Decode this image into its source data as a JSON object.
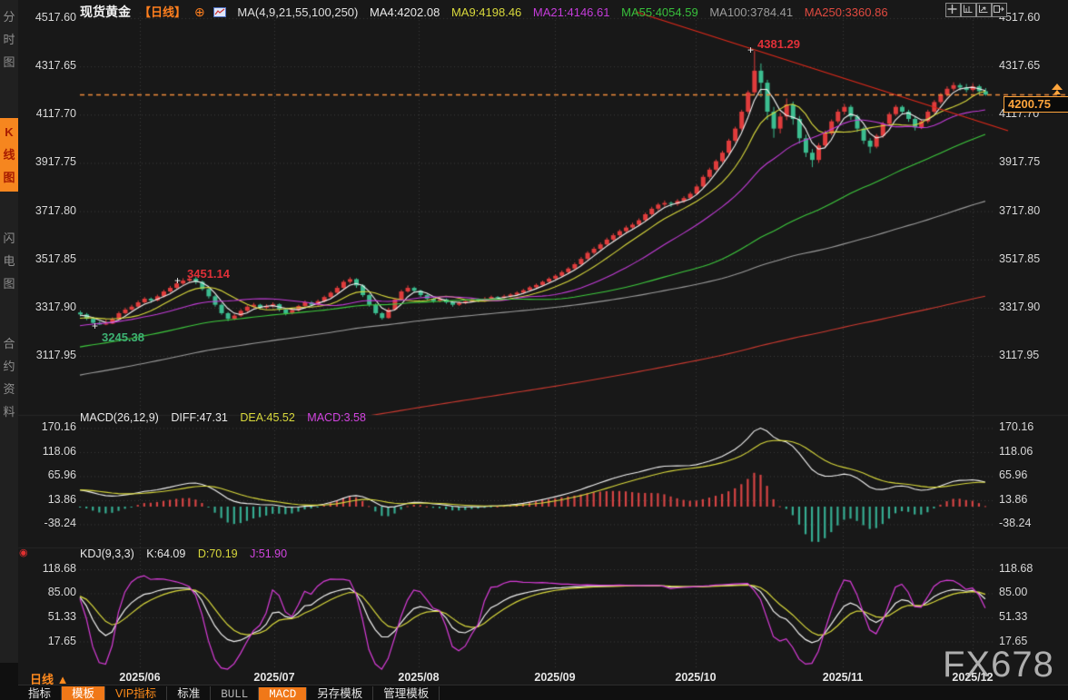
{
  "header": {
    "symbol": "现货黄金",
    "period": "【日线】",
    "plus_icon": "⊕",
    "ma_settings": "MA(4,9,21,55,100,250)",
    "ma_values": [
      {
        "label": "MA4:4202.08",
        "color": "#e8e8e8"
      },
      {
        "label": "MA9:4198.46",
        "color": "#d9d93c"
      },
      {
        "label": "MA21:4146.61",
        "color": "#c43cd9"
      },
      {
        "label": "MA55:4054.59",
        "color": "#38c03c"
      },
      {
        "label": "MA100:3784.41",
        "color": "#9c9c9c"
      },
      {
        "label": "MA250:3360.86",
        "color": "#e04a40"
      }
    ]
  },
  "sidebar": {
    "items": [
      {
        "label": "分时图",
        "active": false
      },
      {
        "label": "K线图",
        "active": true
      },
      {
        "label": "闪电图",
        "active": false
      },
      {
        "label": "合约资料",
        "active": false
      }
    ]
  },
  "macd_panel": {
    "title": "MACD(26,12,9)",
    "diff": "DIFF:47.31",
    "dea": "DEA:45.52",
    "macd": "MACD:3.58"
  },
  "kdj_panel": {
    "title": "KDJ(9,3,3)",
    "k": "K:64.09",
    "d": "D:70.19",
    "j": "J:51.90"
  },
  "xaxis": {
    "period_label": "日线 ▲"
  },
  "toolbar": {
    "items": [
      {
        "label": "指标",
        "style": "plain"
      },
      {
        "label": "模板",
        "style": "active"
      },
      {
        "label": "VIP指标",
        "style": "vip"
      },
      {
        "label": "标准",
        "style": "plain"
      },
      {
        "label": "BULL",
        "style": "mono"
      },
      {
        "label": "MACD",
        "style": "mono-active"
      },
      {
        "label": "另存模板",
        "style": "plain"
      },
      {
        "label": "管理模板",
        "style": "plain"
      }
    ]
  },
  "price_tag": {
    "value": "4200.75"
  },
  "annotations": {
    "peak": "4381.29",
    "june_high": "3451.14",
    "june_low": "3245.38"
  },
  "watermark": "FX678",
  "colors": {
    "up": "#e03c3c",
    "down": "#3cbd90",
    "hist_up": "#d64444",
    "hist_down": "#36ad92",
    "ma_lines": [
      "#f2f2f2",
      "#d9d93c",
      "#c43cd9",
      "#3ecb3e",
      "#9c9c9c",
      "#cc3a30"
    ],
    "diff": "#f2f2f2",
    "dea": "#d9d93c",
    "k": "#f2f2f2",
    "d": "#d9d93c",
    "j": "#d93cd9",
    "trendline": "#e02a1a",
    "last_price_line": "#f08c3c",
    "grid": "#3c3c3c",
    "accent": "#f6861f"
  },
  "chart_data": {
    "type": "candlestick",
    "title": "现货黄金 日线",
    "price_axis": [
      "4517.60",
      "4317.65",
      "4117.70",
      "3917.75",
      "3717.80",
      "3517.85",
      "3317.90",
      "3117.95"
    ],
    "macd_axis": [
      "170.16",
      "118.06",
      "65.96",
      "13.86",
      "-38.24"
    ],
    "kdj_axis": [
      "118.68",
      "85.00",
      "51.33",
      "17.65"
    ],
    "x_dates": [
      "2025/06",
      "2025/07",
      "2025/08",
      "2025/09",
      "2025/10",
      "2025/11",
      "2025/12"
    ],
    "ma_periods": [
      4,
      9,
      21,
      55,
      100,
      250
    ],
    "last_close": 4200.75,
    "high_label_value": 4381.29,
    "candles": [
      [
        3298,
        3305,
        3282,
        3290
      ],
      [
        3290,
        3296,
        3266,
        3272
      ],
      [
        3272,
        3280,
        3250,
        3255
      ],
      [
        3255,
        3262,
        3246,
        3248
      ],
      [
        3248,
        3268,
        3245.38,
        3252
      ],
      [
        3252,
        3278,
        3250,
        3270
      ],
      [
        3270,
        3302,
        3268,
        3295
      ],
      [
        3295,
        3318,
        3290,
        3310
      ],
      [
        3310,
        3330,
        3305,
        3322
      ],
      [
        3322,
        3348,
        3318,
        3340
      ],
      [
        3340,
        3362,
        3334,
        3355
      ],
      [
        3355,
        3360,
        3338,
        3348
      ],
      [
        3348,
        3372,
        3344,
        3365
      ],
      [
        3365,
        3392,
        3360,
        3385
      ],
      [
        3385,
        3408,
        3380,
        3400
      ],
      [
        3400,
        3426,
        3396,
        3418
      ],
      [
        3418,
        3440,
        3412,
        3430
      ],
      [
        3430,
        3451.14,
        3424,
        3438
      ],
      [
        3438,
        3446,
        3415,
        3425
      ],
      [
        3425,
        3430,
        3388,
        3395
      ],
      [
        3395,
        3400,
        3356,
        3365
      ],
      [
        3365,
        3370,
        3322,
        3330
      ],
      [
        3330,
        3336,
        3288,
        3295
      ],
      [
        3295,
        3300,
        3262,
        3272
      ],
      [
        3272,
        3292,
        3266,
        3285
      ],
      [
        3285,
        3312,
        3280,
        3305
      ],
      [
        3305,
        3328,
        3300,
        3322
      ],
      [
        3322,
        3338,
        3315,
        3330
      ],
      [
        3330,
        3334,
        3310,
        3318
      ],
      [
        3318,
        3332,
        3312,
        3325
      ],
      [
        3325,
        3340,
        3318,
        3332
      ],
      [
        3332,
        3336,
        3302,
        3310
      ],
      [
        3310,
        3315,
        3286,
        3295
      ],
      [
        3295,
        3315,
        3290,
        3308
      ],
      [
        3308,
        3330,
        3302,
        3325
      ],
      [
        3325,
        3348,
        3320,
        3340
      ],
      [
        3340,
        3345,
        3322,
        3330
      ],
      [
        3330,
        3352,
        3325,
        3345
      ],
      [
        3345,
        3368,
        3340,
        3362
      ],
      [
        3362,
        3386,
        3356,
        3380
      ],
      [
        3380,
        3408,
        3375,
        3400
      ],
      [
        3400,
        3432,
        3395,
        3425
      ],
      [
        3425,
        3444,
        3418,
        3436
      ],
      [
        3436,
        3440,
        3400,
        3410
      ],
      [
        3410,
        3415,
        3362,
        3370
      ],
      [
        3370,
        3375,
        3322,
        3330
      ],
      [
        3330,
        3336,
        3288,
        3295
      ],
      [
        3295,
        3300,
        3268,
        3275
      ],
      [
        3275,
        3318,
        3272,
        3310
      ],
      [
        3310,
        3358,
        3306,
        3352
      ],
      [
        3352,
        3392,
        3348,
        3385
      ],
      [
        3385,
        3410,
        3380,
        3400
      ],
      [
        3400,
        3405,
        3380,
        3388
      ],
      [
        3388,
        3392,
        3362,
        3370
      ],
      [
        3370,
        3375,
        3348,
        3355
      ],
      [
        3355,
        3360,
        3338,
        3345
      ],
      [
        3345,
        3360,
        3340,
        3352
      ],
      [
        3352,
        3356,
        3334,
        3340
      ],
      [
        3340,
        3345,
        3322,
        3330
      ],
      [
        3330,
        3344,
        3325,
        3338
      ],
      [
        3338,
        3352,
        3332,
        3345
      ],
      [
        3345,
        3358,
        3340,
        3352
      ],
      [
        3352,
        3356,
        3340,
        3348
      ],
      [
        3348,
        3362,
        3342,
        3355
      ],
      [
        3355,
        3368,
        3350,
        3362
      ],
      [
        3362,
        3366,
        3350,
        3358
      ],
      [
        3358,
        3372,
        3352,
        3365
      ],
      [
        3365,
        3378,
        3360,
        3372
      ],
      [
        3372,
        3386,
        3366,
        3380
      ],
      [
        3380,
        3396,
        3374,
        3390
      ],
      [
        3390,
        3408,
        3385,
        3402
      ],
      [
        3402,
        3418,
        3396,
        3412
      ],
      [
        3412,
        3430,
        3406,
        3425
      ],
      [
        3425,
        3444,
        3420,
        3438
      ],
      [
        3438,
        3456,
        3432,
        3450
      ],
      [
        3450,
        3472,
        3444,
        3465
      ],
      [
        3465,
        3486,
        3458,
        3480
      ],
      [
        3480,
        3505,
        3474,
        3498
      ],
      [
        3498,
        3528,
        3492,
        3520
      ],
      [
        3520,
        3552,
        3514,
        3545
      ],
      [
        3545,
        3570,
        3538,
        3562
      ],
      [
        3562,
        3588,
        3555,
        3580
      ],
      [
        3580,
        3608,
        3574,
        3600
      ],
      [
        3600,
        3626,
        3594,
        3618
      ],
      [
        3618,
        3642,
        3610,
        3635
      ],
      [
        3635,
        3658,
        3628,
        3650
      ],
      [
        3650,
        3670,
        3642,
        3662
      ],
      [
        3662,
        3688,
        3655,
        3680
      ],
      [
        3680,
        3712,
        3674,
        3705
      ],
      [
        3705,
        3736,
        3698,
        3728
      ],
      [
        3728,
        3752,
        3720,
        3745
      ],
      [
        3745,
        3762,
        3736,
        3752
      ],
      [
        3752,
        3758,
        3735,
        3748
      ],
      [
        3748,
        3768,
        3740,
        3760
      ],
      [
        3760,
        3780,
        3752,
        3772
      ],
      [
        3772,
        3798,
        3765,
        3790
      ],
      [
        3790,
        3828,
        3784,
        3820
      ],
      [
        3820,
        3868,
        3814,
        3860
      ],
      [
        3860,
        3898,
        3852,
        3890
      ],
      [
        3890,
        3932,
        3884,
        3925
      ],
      [
        3925,
        3968,
        3918,
        3960
      ],
      [
        3960,
        4018,
        3952,
        4010
      ],
      [
        4010,
        4068,
        4002,
        4060
      ],
      [
        4060,
        4138,
        4052,
        4130
      ],
      [
        4130,
        4218,
        4122,
        4210
      ],
      [
        4210,
        4381.29,
        4200,
        4300
      ],
      [
        4300,
        4330,
        4190,
        4250
      ],
      [
        4250,
        4262,
        4096,
        4130
      ],
      [
        4130,
        4150,
        4022,
        4060
      ],
      [
        4060,
        4125,
        4040,
        4110
      ],
      [
        4110,
        4185,
        4095,
        4160
      ],
      [
        4160,
        4172,
        4076,
        4100
      ],
      [
        4100,
        4112,
        3998,
        4020
      ],
      [
        4020,
        4035,
        3942,
        3960
      ],
      [
        3960,
        3975,
        3900,
        3930
      ],
      [
        3930,
        4000,
        3918,
        3990
      ],
      [
        3990,
        4052,
        3982,
        4040
      ],
      [
        4040,
        4098,
        4032,
        4090
      ],
      [
        4090,
        4140,
        4082,
        4130
      ],
      [
        4130,
        4162,
        4118,
        4150
      ],
      [
        4150,
        4158,
        4096,
        4110
      ],
      [
        4110,
        4118,
        4046,
        4060
      ],
      [
        4060,
        4068,
        3996,
        4010
      ],
      [
        4010,
        4020,
        3958,
        3985
      ],
      [
        3985,
        4038,
        3978,
        4030
      ],
      [
        4030,
        4088,
        4022,
        4080
      ],
      [
        4080,
        4128,
        4072,
        4120
      ],
      [
        4120,
        4158,
        4112,
        4150
      ],
      [
        4150,
        4156,
        4118,
        4130
      ],
      [
        4130,
        4138,
        4088,
        4100
      ],
      [
        4100,
        4108,
        4052,
        4065
      ],
      [
        4065,
        4098,
        4058,
        4090
      ],
      [
        4090,
        4138,
        4082,
        4130
      ],
      [
        4130,
        4178,
        4122,
        4170
      ],
      [
        4170,
        4208,
        4162,
        4200
      ],
      [
        4200,
        4235,
        4192,
        4225
      ],
      [
        4225,
        4252,
        4216,
        4240
      ],
      [
        4240,
        4248,
        4218,
        4230
      ],
      [
        4230,
        4245,
        4210,
        4220
      ],
      [
        4220,
        4248,
        4212,
        4235
      ],
      [
        4235,
        4242,
        4200,
        4215
      ],
      [
        4215,
        4228,
        4196,
        4200.75
      ]
    ]
  }
}
